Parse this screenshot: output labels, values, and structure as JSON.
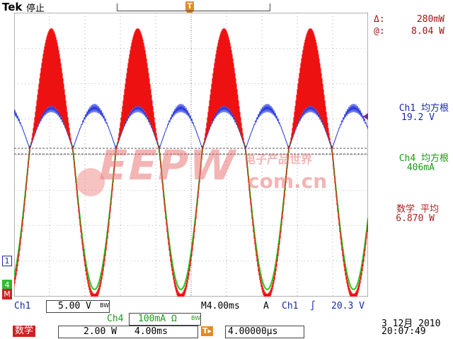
{
  "brand": "Tek",
  "status": "停止",
  "trigger_marker": "T",
  "colors": {
    "ch1": "#ee1111",
    "ch4": "#22cc22",
    "ch4_label": "#1a9a1a",
    "ch2": "#2233dd",
    "math_label": "#aa2222",
    "grid": "#777777",
    "watermark": "#e06060"
  },
  "cursor": {
    "delta_label": "Δ:",
    "delta_value": "280mW",
    "at_label": "@:",
    "at_value": "8.04 W"
  },
  "measurements": [
    {
      "label": "Ch1 均方根",
      "value": "19.2 V"
    },
    {
      "label": "Ch4 均方根",
      "value": "406mA"
    },
    {
      "label": "数学 平均",
      "value": "6.870 W"
    }
  ],
  "channel_markers": {
    "ch1": "1",
    "ch4": "4",
    "math": "M"
  },
  "bottom": {
    "ch1_label": "Ch1",
    "ch1_scale": "5.00 V",
    "ch1_bw": "BW",
    "ch4_label": "Ch4",
    "ch4_scale": "100mA Ω",
    "ch4_bw": "BW",
    "timebase": "M4.00ms",
    "trigger_mode": "A",
    "trigger_source": "Ch1",
    "trigger_slope": "∫",
    "trigger_level": "20.3 V",
    "math_label": "数学",
    "math_scale": "2.00 W",
    "math_time": "4.00ms",
    "position_icon": "T▸",
    "position_value": "4.00000µs",
    "date": "3 12月 2010",
    "time": "20:07:49"
  },
  "watermark": {
    "brand": "EEPW",
    "url": "com.cn",
    "cn": "电子产品世界"
  }
}
